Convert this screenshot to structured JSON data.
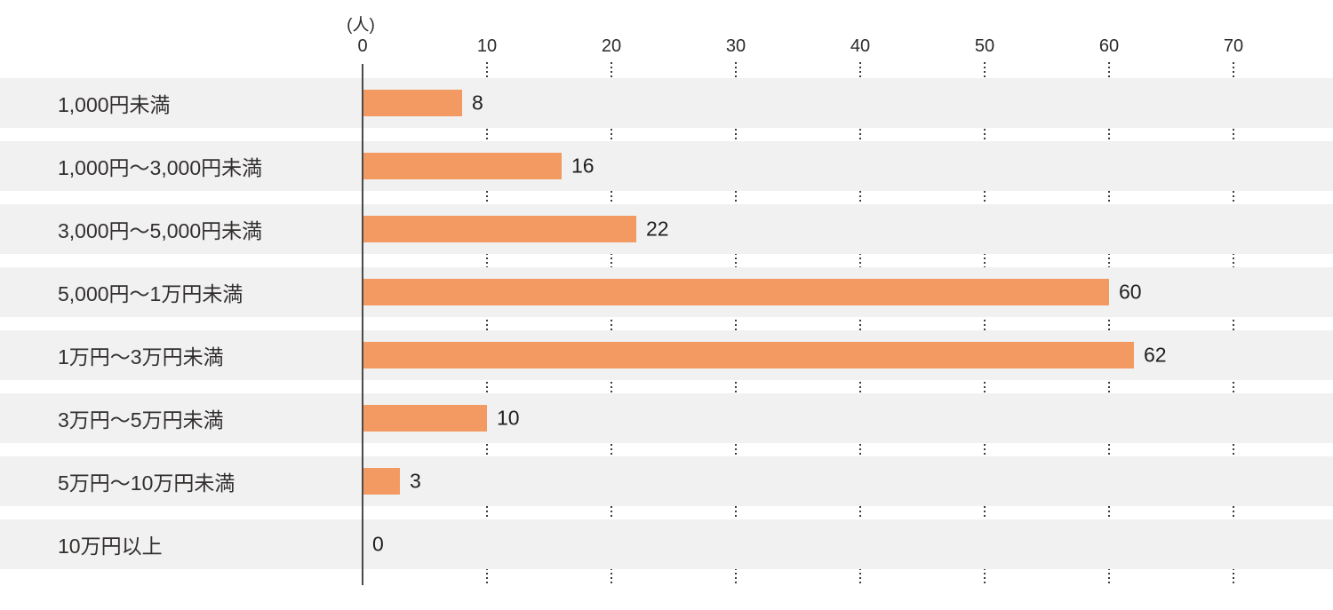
{
  "chart_data": {
    "type": "bar",
    "orientation": "horizontal",
    "title": "",
    "unit_label": "(人)",
    "xlabel": "(人)",
    "ylabel": "",
    "categories": [
      "1,000円未満",
      "1,000円〜3,000円未満",
      "3,000円〜5,000円未満",
      "5,000円〜1万円未満",
      "1万円〜3万円未満",
      "3万円〜5万円未満",
      "5万円〜10万円未満",
      "10万円以上"
    ],
    "values": [
      8,
      16,
      22,
      60,
      62,
      10,
      3,
      0
    ],
    "x_ticks": [
      "0",
      "10",
      "20",
      "30",
      "40",
      "50",
      "60",
      "70"
    ],
    "xlim": [
      0,
      78
    ],
    "grid": "dotted-vertical-in-gaps",
    "legend_position": "none",
    "data_labels_shown": true
  },
  "style": {
    "bar_color": "#F39A62",
    "band_color": "#F1F1F1",
    "axis_line_color": "#4A4A4A",
    "grid_dot_color": "#3C3C3C",
    "text_color": "#2B2B2B",
    "background_color": "#FFFFFF"
  }
}
